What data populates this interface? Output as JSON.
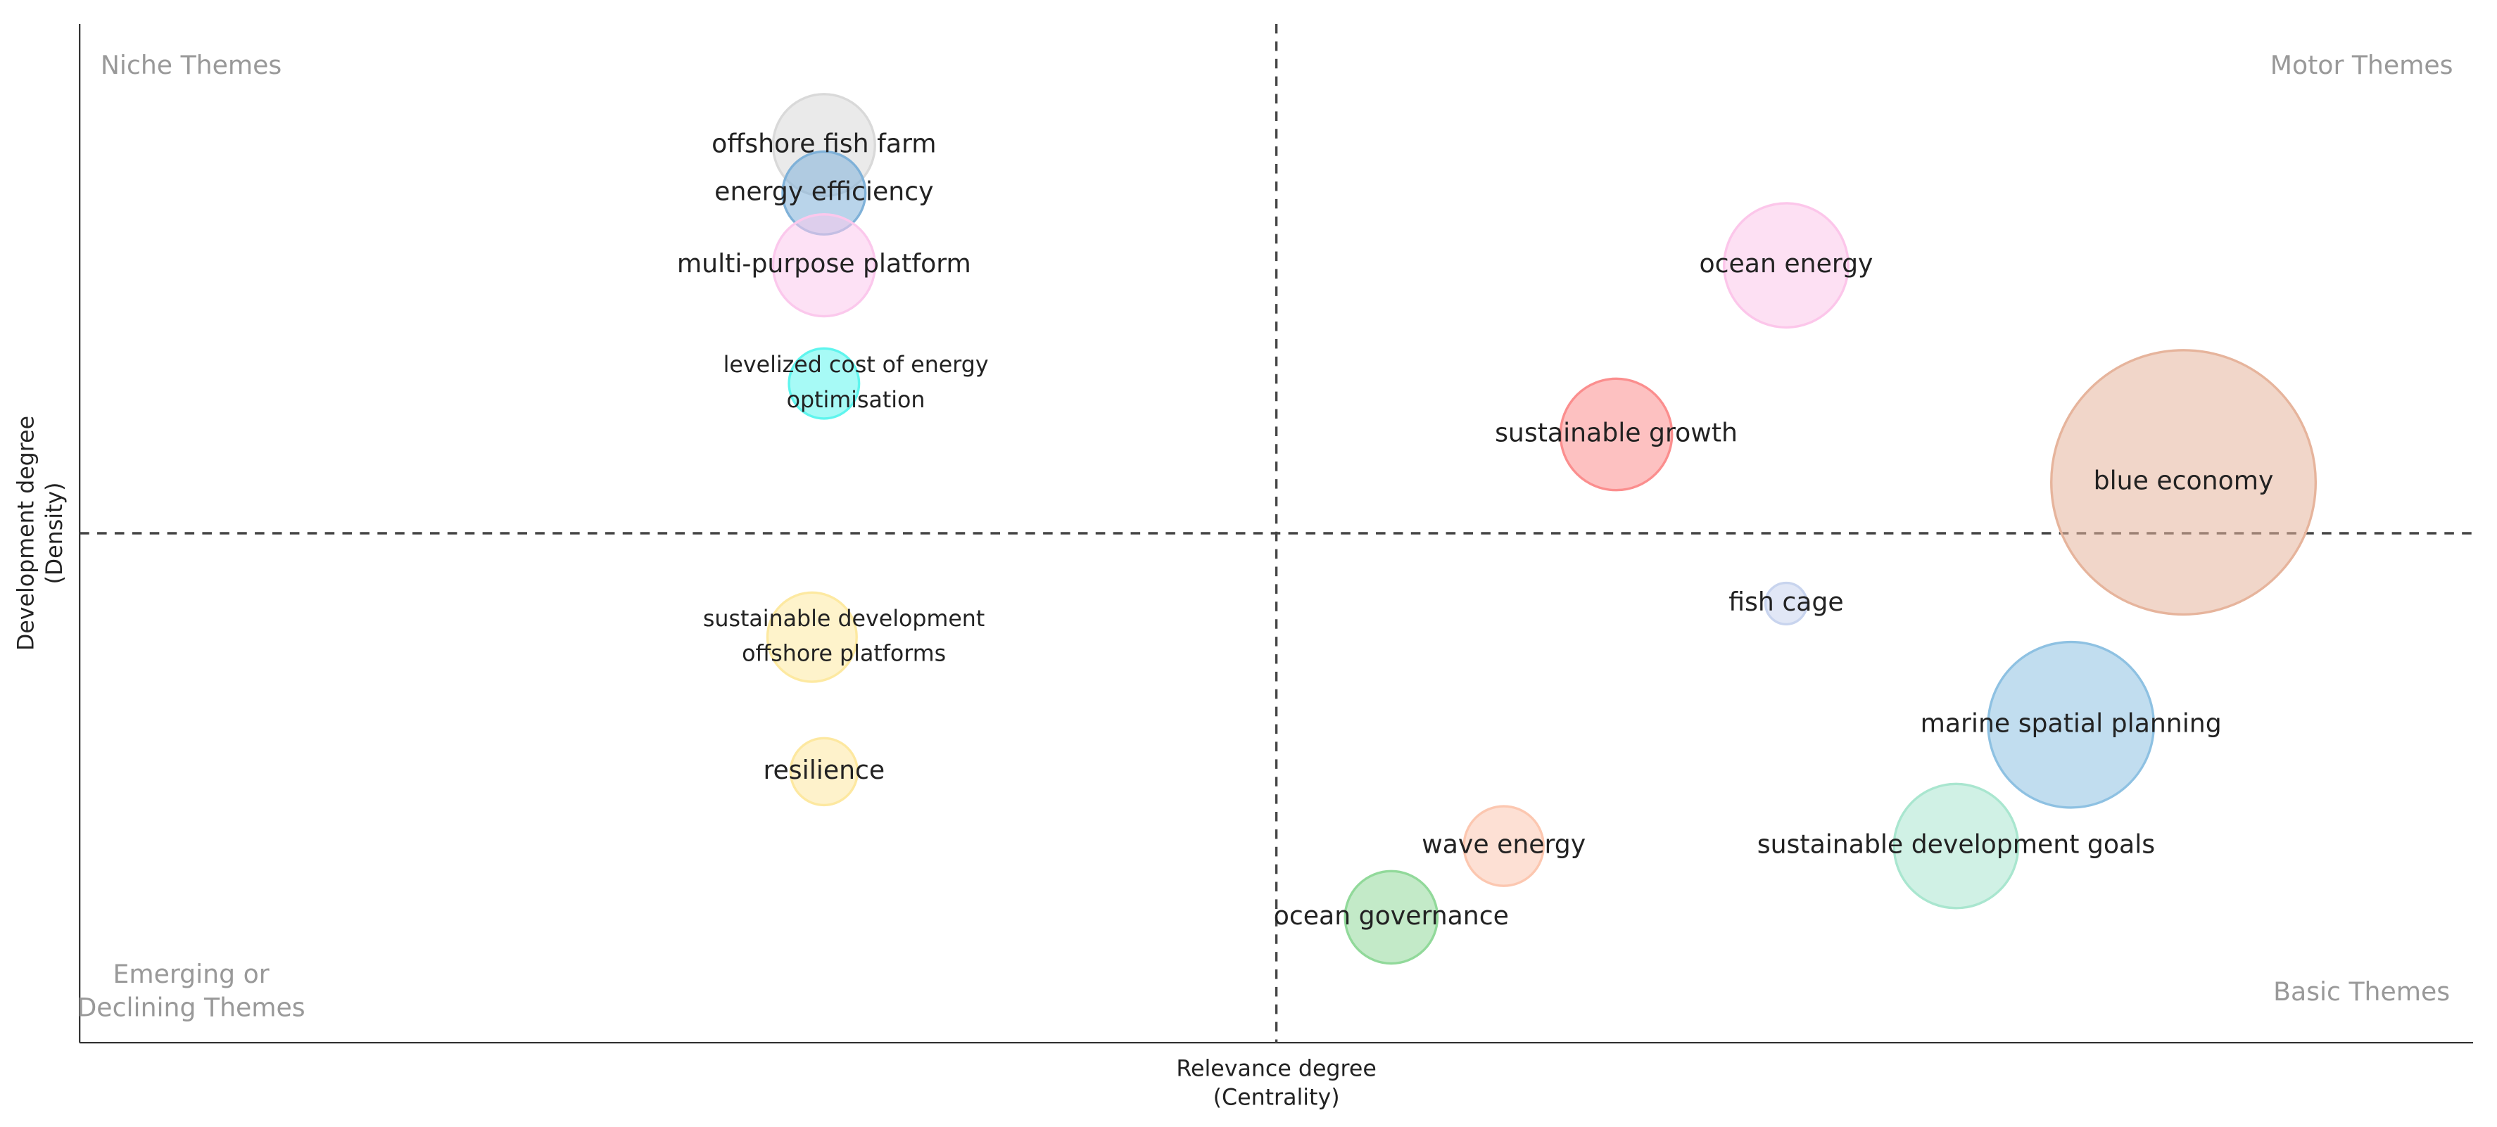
{
  "chart_data": {
    "type": "bubble",
    "x_label": [
      "Relevance degree",
      "(Centrality)"
    ],
    "y_label": [
      "Development degree",
      "(Density)"
    ],
    "quadrants": {
      "top_left": [
        "Niche Themes"
      ],
      "top_right": [
        "Motor Themes"
      ],
      "bottom_left": [
        "Emerging or",
        "Declining Themes"
      ],
      "bottom_right": [
        "Basic Themes"
      ]
    },
    "xlim": [
      0,
      100
    ],
    "ylim": [
      0,
      100
    ],
    "x_divider": 50,
    "y_divider": 50,
    "labels": [
      [
        "offshore fish farm"
      ],
      [
        "energy efficiency"
      ],
      [
        "multi-purpose platform"
      ],
      [
        "levelized cost of energy",
        "optimisation"
      ],
      [
        "ocean energy"
      ],
      [
        "sustainable growth"
      ],
      [
        "blue economy"
      ],
      [
        "fish cage"
      ],
      [
        "marine spatial planning"
      ],
      [
        "sustainable development goals"
      ],
      [
        "wave energy"
      ],
      [
        "ocean governance"
      ],
      [
        "sustainable development",
        "offshore platforms"
      ],
      [
        "resilience"
      ]
    ],
    "x": [
      31.1,
      31.1,
      31.1,
      31.1,
      71.3,
      64.2,
      87.9,
      71.3,
      83.2,
      78.4,
      59.5,
      54.8,
      30.6,
      31.1
    ],
    "y": [
      88.1,
      83.4,
      76.3,
      64.7,
      76.3,
      59.7,
      55.0,
      43.1,
      31.2,
      19.3,
      19.3,
      12.3,
      39.8,
      26.6
    ],
    "sizes": [
      32,
      26,
      32,
      22,
      39,
      35,
      83,
      13,
      52,
      39,
      25,
      29,
      28,
      21
    ],
    "colors": [
      "#d9d9d9",
      "#7fb1d8",
      "#fbc8ec",
      "#5ff5ee",
      "#fcc6ea",
      "#fb8e8e",
      "#e6b49c",
      "#c8d4ee",
      "#8ec1e2",
      "#a9e6cf",
      "#fcc7b0",
      "#91d99a",
      "#fde9a1",
      "#fde8a0"
    ]
  }
}
